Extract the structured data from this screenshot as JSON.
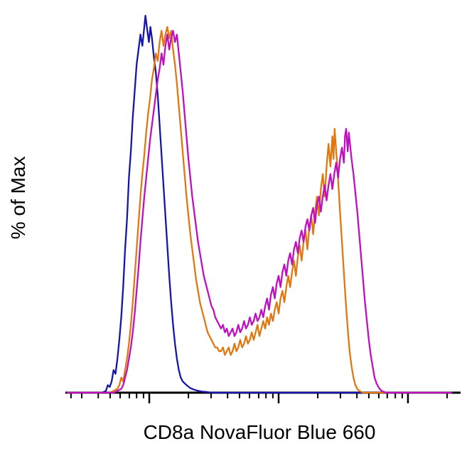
{
  "chart_data": {
    "type": "line",
    "subtype": "flow-cytometry-overlay-histogram",
    "title": "",
    "xlabel": "CD8a NovaFluor Blue 660",
    "ylabel": "% of Max",
    "xlim": [
      0,
      100
    ],
    "ylim": [
      0,
      100
    ],
    "x_scale": "log-like, unlabeled tick marks",
    "grid": false,
    "legend": "none",
    "axis_color": "#000000",
    "x_ticks": {
      "minor": [
        0.9,
        3.7,
        8.0,
        11.1,
        13.7,
        16.1,
        18.0,
        19.8,
        31.5,
        37.4,
        41.7,
        44.8,
        47.4,
        49.8,
        51.7,
        53.5,
        65.2,
        71.1,
        75.4,
        78.5,
        81.1,
        83.3,
        85.4,
        87.2,
        98.9
      ],
      "major": [
        21.3,
        55.0,
        88.7
      ]
    },
    "series": [
      {
        "name": "blue",
        "color": "#1616a8",
        "points": [
          [
            0,
            0
          ],
          [
            9,
            0
          ],
          [
            10,
            0.5
          ],
          [
            10.5,
            2
          ],
          [
            11,
            1.5
          ],
          [
            11.5,
            3
          ],
          [
            12,
            6
          ],
          [
            12.5,
            5
          ],
          [
            13,
            9
          ],
          [
            13.5,
            14
          ],
          [
            14,
            20
          ],
          [
            14.5,
            28
          ],
          [
            15,
            38
          ],
          [
            15.5,
            46
          ],
          [
            16,
            57
          ],
          [
            16.5,
            64
          ],
          [
            17,
            73
          ],
          [
            17.5,
            80
          ],
          [
            18,
            87
          ],
          [
            18.5,
            91
          ],
          [
            19,
            95
          ],
          [
            19.5,
            92
          ],
          [
            20,
            97
          ],
          [
            20.3,
            100
          ],
          [
            20.8,
            96
          ],
          [
            21.2,
            93
          ],
          [
            21.6,
            97
          ],
          [
            22,
            94
          ],
          [
            22.5,
            89
          ],
          [
            23,
            85
          ],
          [
            23.5,
            79
          ],
          [
            24,
            71
          ],
          [
            24.5,
            63
          ],
          [
            25,
            55
          ],
          [
            25.5,
            47
          ],
          [
            26,
            39
          ],
          [
            26.5,
            31
          ],
          [
            27,
            24
          ],
          [
            27.5,
            18
          ],
          [
            28,
            13
          ],
          [
            28.5,
            9
          ],
          [
            29,
            6
          ],
          [
            29.5,
            4
          ],
          [
            30,
            3
          ],
          [
            31,
            2
          ],
          [
            32,
            1.2
          ],
          [
            33,
            0.8
          ],
          [
            34,
            0.5
          ],
          [
            35,
            0.3
          ],
          [
            36,
            0.2
          ],
          [
            37,
            0.1
          ],
          [
            38,
            0
          ],
          [
            100,
            0
          ]
        ]
      },
      {
        "name": "orange",
        "color": "#e07812",
        "points": [
          [
            0,
            0
          ],
          [
            11,
            0
          ],
          [
            12,
            0.5
          ],
          [
            13,
            1
          ],
          [
            13.5,
            2
          ],
          [
            14,
            4
          ],
          [
            14.5,
            3
          ],
          [
            15,
            6
          ],
          [
            15.5,
            9
          ],
          [
            16,
            13
          ],
          [
            16.5,
            18
          ],
          [
            17,
            24
          ],
          [
            17.5,
            31
          ],
          [
            18,
            38
          ],
          [
            18.5,
            45
          ],
          [
            19,
            52
          ],
          [
            19.5,
            58
          ],
          [
            20,
            63
          ],
          [
            20.5,
            69
          ],
          [
            21,
            74
          ],
          [
            21.5,
            78
          ],
          [
            22,
            83
          ],
          [
            22.5,
            86
          ],
          [
            23,
            90
          ],
          [
            23.5,
            88
          ],
          [
            24,
            93
          ],
          [
            24.5,
            96
          ],
          [
            25,
            92
          ],
          [
            25.5,
            95
          ],
          [
            26,
            97
          ],
          [
            26.5,
            94
          ],
          [
            27,
            96
          ],
          [
            27.5,
            91
          ],
          [
            28,
            87
          ],
          [
            28.5,
            82
          ],
          [
            29,
            76
          ],
          [
            29.5,
            70
          ],
          [
            30,
            64
          ],
          [
            30.5,
            58
          ],
          [
            31,
            52
          ],
          [
            31.5,
            47
          ],
          [
            32,
            42
          ],
          [
            32.5,
            38
          ],
          [
            33,
            34
          ],
          [
            33.5,
            30
          ],
          [
            34,
            27
          ],
          [
            34.5,
            24
          ],
          [
            35,
            22
          ],
          [
            35.5,
            20
          ],
          [
            36,
            18
          ],
          [
            36.5,
            16
          ],
          [
            37,
            15
          ],
          [
            37.5,
            14
          ],
          [
            38,
            13
          ],
          [
            38.5,
            12
          ],
          [
            39,
            12
          ],
          [
            39.5,
            11
          ],
          [
            40,
            11
          ],
          [
            40.5,
            12
          ],
          [
            41,
            10
          ],
          [
            41.5,
            11
          ],
          [
            42,
            12
          ],
          [
            42.5,
            10
          ],
          [
            43,
            11
          ],
          [
            43.5,
            13
          ],
          [
            44,
            11
          ],
          [
            44.5,
            12
          ],
          [
            45,
            14
          ],
          [
            45.5,
            12
          ],
          [
            46,
            13
          ],
          [
            46.5,
            15
          ],
          [
            47,
            13
          ],
          [
            47.5,
            14
          ],
          [
            48,
            16
          ],
          [
            48.5,
            14
          ],
          [
            49,
            16
          ],
          [
            49.5,
            18
          ],
          [
            50,
            15
          ],
          [
            50.5,
            17
          ],
          [
            51,
            19
          ],
          [
            51.5,
            17
          ],
          [
            52,
            20
          ],
          [
            52.5,
            18
          ],
          [
            53,
            21
          ],
          [
            53.5,
            19
          ],
          [
            54,
            22
          ],
          [
            54.5,
            24
          ],
          [
            55,
            21
          ],
          [
            55.5,
            25
          ],
          [
            56,
            27
          ],
          [
            56.5,
            24
          ],
          [
            57,
            28
          ],
          [
            57.5,
            31
          ],
          [
            58,
            28
          ],
          [
            58.5,
            32
          ],
          [
            59,
            35
          ],
          [
            59.5,
            31
          ],
          [
            60,
            36
          ],
          [
            60.5,
            39
          ],
          [
            61,
            35
          ],
          [
            61.5,
            40
          ],
          [
            62,
            43
          ],
          [
            62.5,
            38
          ],
          [
            63,
            44
          ],
          [
            63.5,
            47
          ],
          [
            64,
            42
          ],
          [
            64.5,
            48
          ],
          [
            65,
            52
          ],
          [
            65.5,
            47
          ],
          [
            66,
            54
          ],
          [
            66.5,
            58
          ],
          [
            67,
            52
          ],
          [
            67.5,
            60
          ],
          [
            68,
            66
          ],
          [
            68.5,
            60
          ],
          [
            69,
            68
          ],
          [
            69.3,
            62
          ],
          [
            69.6,
            70
          ],
          [
            70,
            64
          ],
          [
            70.3,
            60
          ],
          [
            70.6,
            55
          ],
          [
            71,
            48
          ],
          [
            71.5,
            40
          ],
          [
            72,
            32
          ],
          [
            72.5,
            24
          ],
          [
            73,
            17
          ],
          [
            73.5,
            11
          ],
          [
            74,
            7
          ],
          [
            74.5,
            4
          ],
          [
            75,
            2
          ],
          [
            75.5,
            1
          ],
          [
            76,
            0.5
          ],
          [
            77,
            0
          ],
          [
            100,
            0
          ]
        ]
      },
      {
        "name": "magenta",
        "color": "#bf10bf",
        "points": [
          [
            0,
            0
          ],
          [
            12,
            0
          ],
          [
            13,
            0.5
          ],
          [
            14,
            1
          ],
          [
            14.5,
            2
          ],
          [
            15,
            4
          ],
          [
            15.5,
            6
          ],
          [
            16,
            9
          ],
          [
            16.5,
            12
          ],
          [
            17,
            16
          ],
          [
            17.5,
            21
          ],
          [
            18,
            27
          ],
          [
            18.5,
            33
          ],
          [
            19,
            40
          ],
          [
            19.5,
            46
          ],
          [
            20,
            52
          ],
          [
            20.5,
            57
          ],
          [
            21,
            62
          ],
          [
            21.5,
            67
          ],
          [
            22,
            71
          ],
          [
            22.5,
            75
          ],
          [
            23,
            79
          ],
          [
            23.5,
            83
          ],
          [
            24,
            86
          ],
          [
            24.5,
            90
          ],
          [
            25,
            87
          ],
          [
            25.5,
            92
          ],
          [
            26,
            95
          ],
          [
            26.5,
            91
          ],
          [
            27,
            94
          ],
          [
            27.5,
            96
          ],
          [
            28,
            93
          ],
          [
            28.5,
            95
          ],
          [
            29,
            90
          ],
          [
            29.5,
            85
          ],
          [
            30,
            80
          ],
          [
            30.5,
            74
          ],
          [
            31,
            68
          ],
          [
            31.5,
            62
          ],
          [
            32,
            57
          ],
          [
            32.5,
            52
          ],
          [
            33,
            48
          ],
          [
            33.5,
            44
          ],
          [
            34,
            40
          ],
          [
            34.5,
            37
          ],
          [
            35,
            34
          ],
          [
            35.5,
            31
          ],
          [
            36,
            29
          ],
          [
            36.5,
            27
          ],
          [
            37,
            25
          ],
          [
            37.5,
            23
          ],
          [
            38,
            22
          ],
          [
            38.5,
            20
          ],
          [
            39,
            19
          ],
          [
            39.5,
            18
          ],
          [
            40,
            17
          ],
          [
            40.5,
            18
          ],
          [
            41,
            16
          ],
          [
            41.5,
            17
          ],
          [
            42,
            15
          ],
          [
            42.5,
            16
          ],
          [
            43,
            17
          ],
          [
            43.5,
            15
          ],
          [
            44,
            16
          ],
          [
            44.5,
            18
          ],
          [
            45,
            16
          ],
          [
            45.5,
            17
          ],
          [
            46,
            19
          ],
          [
            46.5,
            17
          ],
          [
            47,
            18
          ],
          [
            47.5,
            20
          ],
          [
            48,
            18
          ],
          [
            48.5,
            19
          ],
          [
            49,
            21
          ],
          [
            49.5,
            19
          ],
          [
            50,
            20
          ],
          [
            50.5,
            22
          ],
          [
            51,
            20
          ],
          [
            51.5,
            23
          ],
          [
            52,
            25
          ],
          [
            52.5,
            22
          ],
          [
            53,
            26
          ],
          [
            53.5,
            28
          ],
          [
            54,
            25
          ],
          [
            54.5,
            29
          ],
          [
            55,
            31
          ],
          [
            55.5,
            28
          ],
          [
            56,
            32
          ],
          [
            56.5,
            34
          ],
          [
            57,
            31
          ],
          [
            57.5,
            35
          ],
          [
            58,
            37
          ],
          [
            58.5,
            34
          ],
          [
            59,
            38
          ],
          [
            59.5,
            40
          ],
          [
            60,
            37
          ],
          [
            60.5,
            41
          ],
          [
            61,
            43
          ],
          [
            61.5,
            40
          ],
          [
            62,
            44
          ],
          [
            62.5,
            46
          ],
          [
            63,
            43
          ],
          [
            63.5,
            47
          ],
          [
            64,
            49
          ],
          [
            64.5,
            45
          ],
          [
            65,
            50
          ],
          [
            65.5,
            52
          ],
          [
            66,
            48
          ],
          [
            66.5,
            52
          ],
          [
            67,
            55
          ],
          [
            67.5,
            51
          ],
          [
            68,
            55
          ],
          [
            68.5,
            58
          ],
          [
            69,
            54
          ],
          [
            69.5,
            58
          ],
          [
            70,
            61
          ],
          [
            70.5,
            57
          ],
          [
            71,
            62
          ],
          [
            71.5,
            65
          ],
          [
            72,
            61
          ],
          [
            72.3,
            68
          ],
          [
            72.6,
            70
          ],
          [
            73,
            64
          ],
          [
            73.3,
            69
          ],
          [
            73.6,
            66
          ],
          [
            74,
            62
          ],
          [
            74.5,
            58
          ],
          [
            75,
            53
          ],
          [
            75.5,
            48
          ],
          [
            76,
            42
          ],
          [
            76.5,
            36
          ],
          [
            77,
            30
          ],
          [
            77.5,
            24
          ],
          [
            78,
            19
          ],
          [
            78.5,
            14
          ],
          [
            79,
            10
          ],
          [
            79.5,
            7
          ],
          [
            80,
            4
          ],
          [
            80.5,
            2.5
          ],
          [
            81,
            1.5
          ],
          [
            81.5,
            0.8
          ],
          [
            82,
            0.4
          ],
          [
            83,
            0
          ],
          [
            100,
            0
          ]
        ]
      }
    ]
  }
}
